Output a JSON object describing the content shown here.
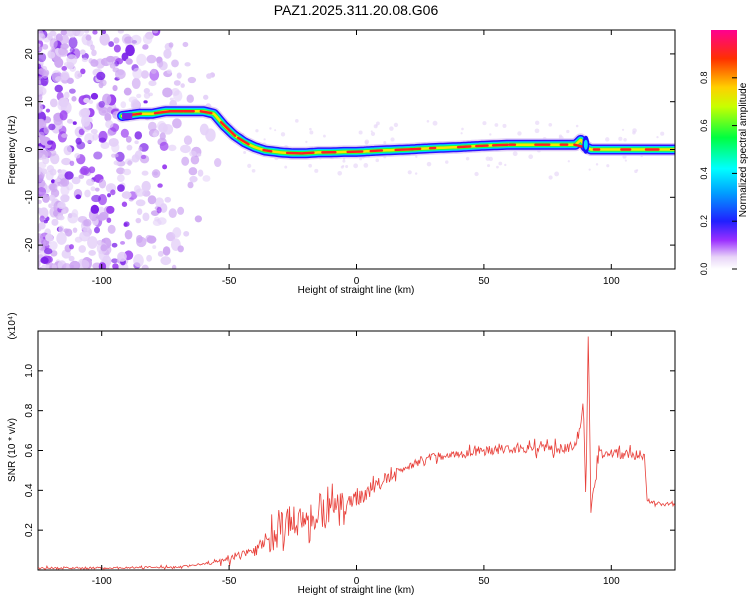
{
  "title": "PAZ1.2025.311.20.08.G06",
  "chart_data": [
    {
      "type": "heatmap",
      "xlabel": "Height of straight line (km)",
      "ylabel": "Frequency (Hz)",
      "xlim": [
        -125,
        125
      ],
      "ylim": [
        -25,
        25
      ],
      "xticks": [
        -100,
        -50,
        0,
        50,
        100
      ],
      "yticks": [
        -20,
        -10,
        0,
        10,
        20
      ],
      "colorbar_label": "Normalized spectral amplitude",
      "colorbar_ticks": [
        "0.0",
        "0.2",
        "0.4",
        "0.6",
        "0.8"
      ],
      "colorbar_range": [
        0,
        1
      ],
      "ridge": {
        "x": [
          -92,
          -85,
          -80,
          -75,
          -70,
          -65,
          -60,
          -56,
          -52,
          -48,
          -44,
          -40,
          -36,
          -30,
          -25,
          -20,
          -15,
          -10,
          -5,
          0,
          10,
          20,
          30,
          40,
          50,
          60,
          70,
          80,
          86,
          88,
          90,
          92,
          95,
          100,
          110,
          125
        ],
        "freq": [
          7,
          7.5,
          7.5,
          8,
          8,
          8,
          8,
          7.5,
          5,
          3,
          1.5,
          0.5,
          -0.2,
          -0.6,
          -0.8,
          -0.8,
          -0.6,
          -0.6,
          -0.5,
          -0.5,
          -0.2,
          0,
          0.3,
          0.5,
          0.8,
          1,
          1,
          1,
          1,
          2,
          0.5,
          0,
          0,
          0,
          0,
          0
        ]
      }
    },
    {
      "type": "line",
      "xlabel": "Height of straight line (km)",
      "ylabel": "SNR (10 * v/v)",
      "scale_label": "(x10⁴)",
      "xlim": [
        -125,
        125
      ],
      "ylim": [
        0,
        1.2
      ],
      "xticks": [
        -100,
        -50,
        0,
        50,
        100
      ],
      "yticks": [
        "0.2",
        "0.4",
        "0.6",
        "0.8",
        "1.0"
      ],
      "color": "#e8403a",
      "envelope": {
        "x": [
          -125,
          -100,
          -70,
          -60,
          -55,
          -50,
          -45,
          -40,
          -35,
          -30,
          -25,
          -20,
          -15,
          -10,
          -5,
          0,
          5,
          10,
          15,
          20,
          25,
          30,
          40,
          50,
          60,
          70,
          80,
          86,
          88,
          89,
          90,
          91,
          92,
          95,
          100,
          105,
          112,
          113,
          114,
          118,
          125
        ],
        "snr": [
          0.01,
          0.01,
          0.015,
          0.03,
          0.04,
          0.05,
          0.08,
          0.1,
          0.14,
          0.2,
          0.25,
          0.25,
          0.28,
          0.3,
          0.33,
          0.36,
          0.4,
          0.44,
          0.48,
          0.52,
          0.55,
          0.57,
          0.58,
          0.6,
          0.61,
          0.61,
          0.61,
          0.62,
          0.7,
          0.85,
          0.35,
          1.2,
          0.3,
          0.58,
          0.59,
          0.58,
          0.58,
          0.58,
          0.35,
          0.33,
          0.33
        ]
      },
      "noise": {
        "x": [
          -125,
          -60,
          -40,
          -35,
          -30,
          -20,
          -10,
          0,
          10,
          20,
          30,
          50,
          80,
          112,
          113,
          125
        ],
        "amp": [
          0.005,
          0.005,
          0.03,
          0.06,
          0.09,
          0.08,
          0.07,
          0.05,
          0.03,
          0.02,
          0.02,
          0.025,
          0.025,
          0.025,
          0.01,
          0.01
        ]
      }
    }
  ]
}
